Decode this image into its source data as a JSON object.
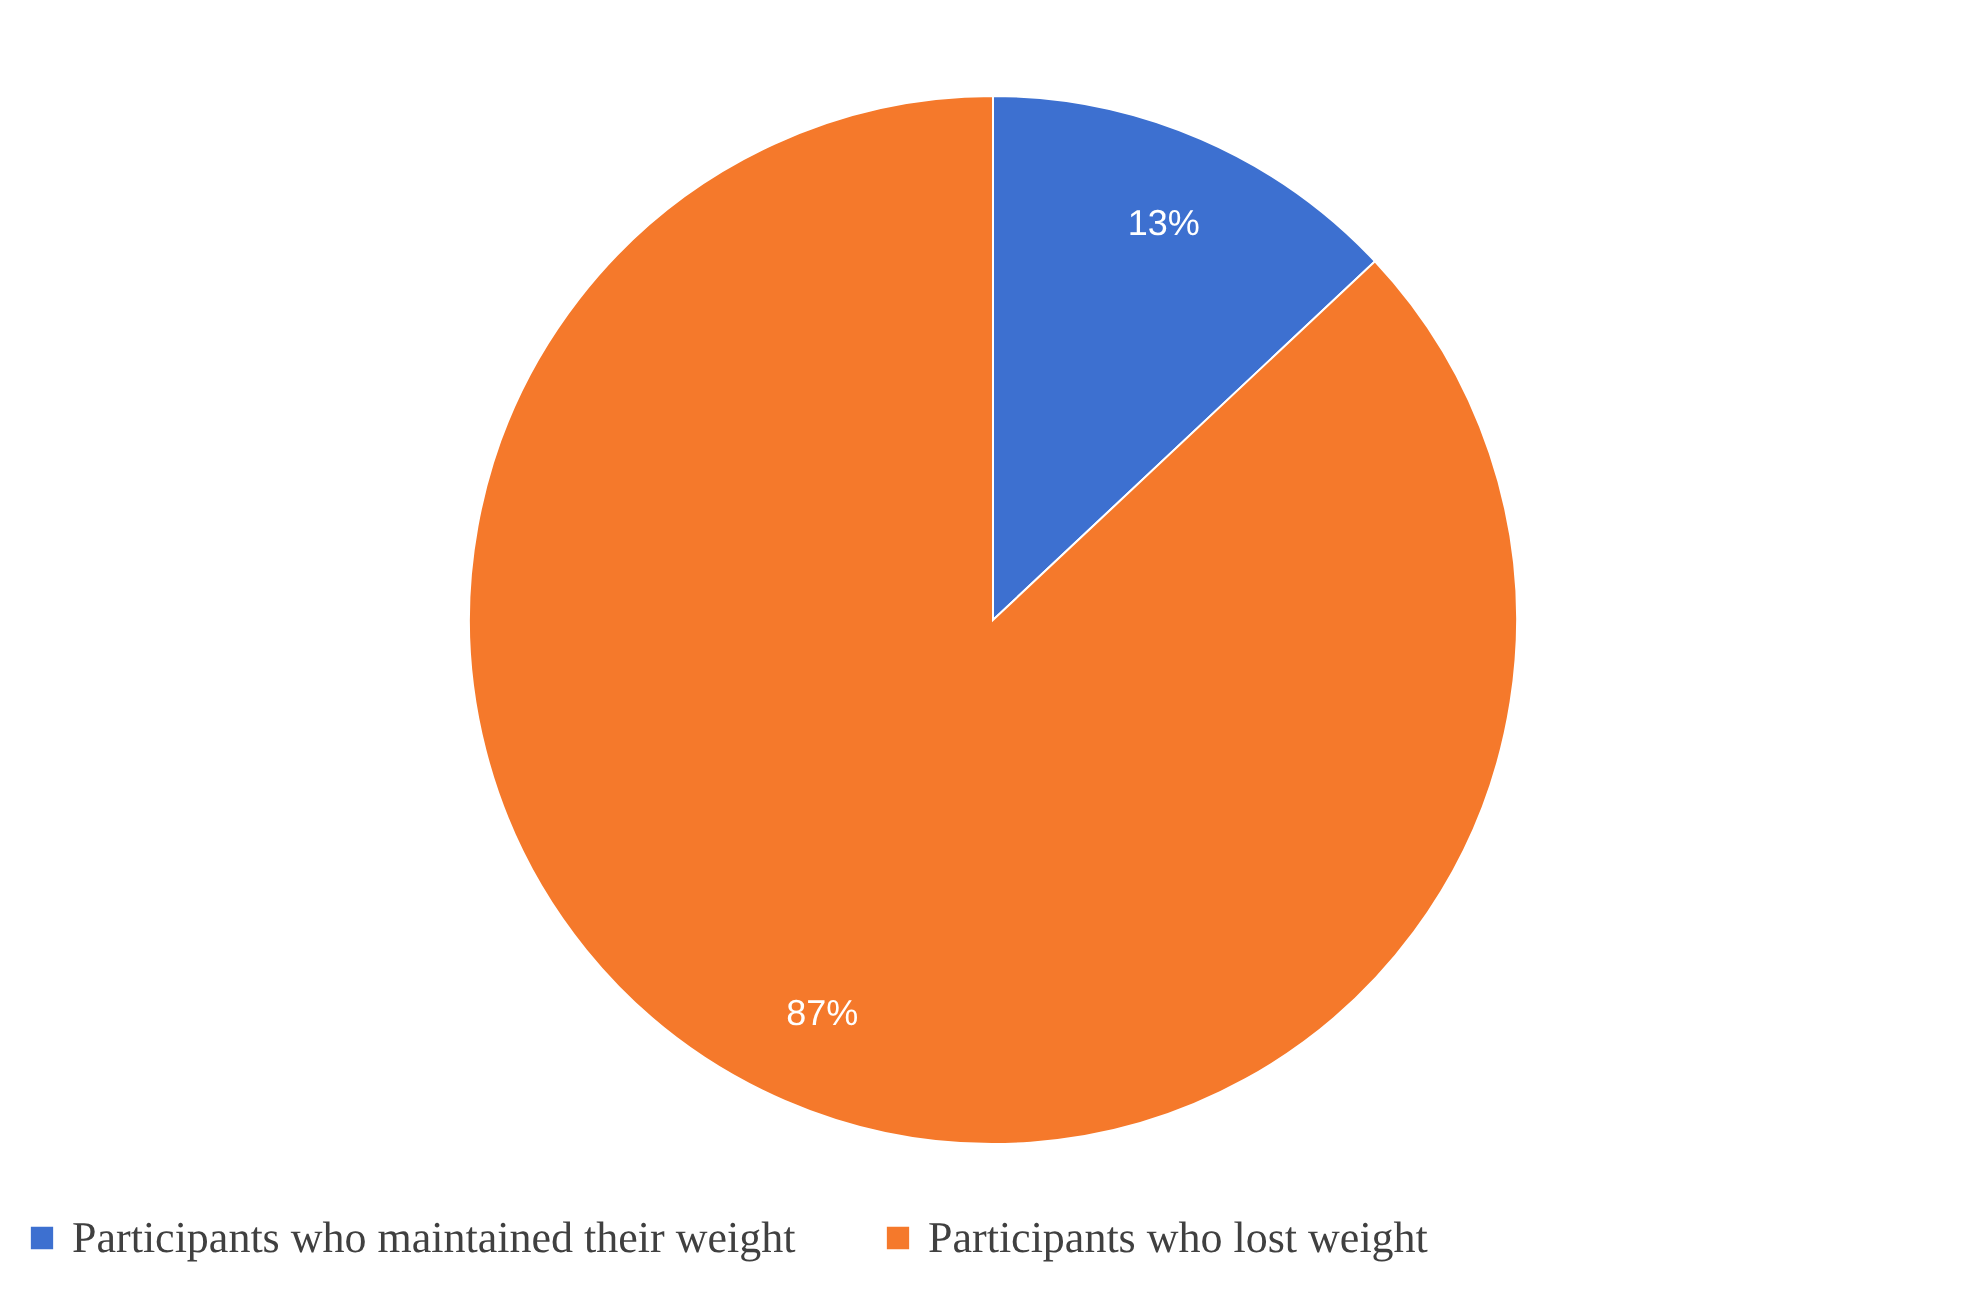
{
  "chart_data": {
    "type": "pie",
    "categories": [
      "Participants who maintained their weight",
      "Participants who lost weight"
    ],
    "values": [
      13,
      87
    ],
    "colors": [
      "#3d70d0",
      "#f5792b"
    ],
    "value_labels": [
      "13%",
      "87%"
    ],
    "legend": "bottom"
  }
}
